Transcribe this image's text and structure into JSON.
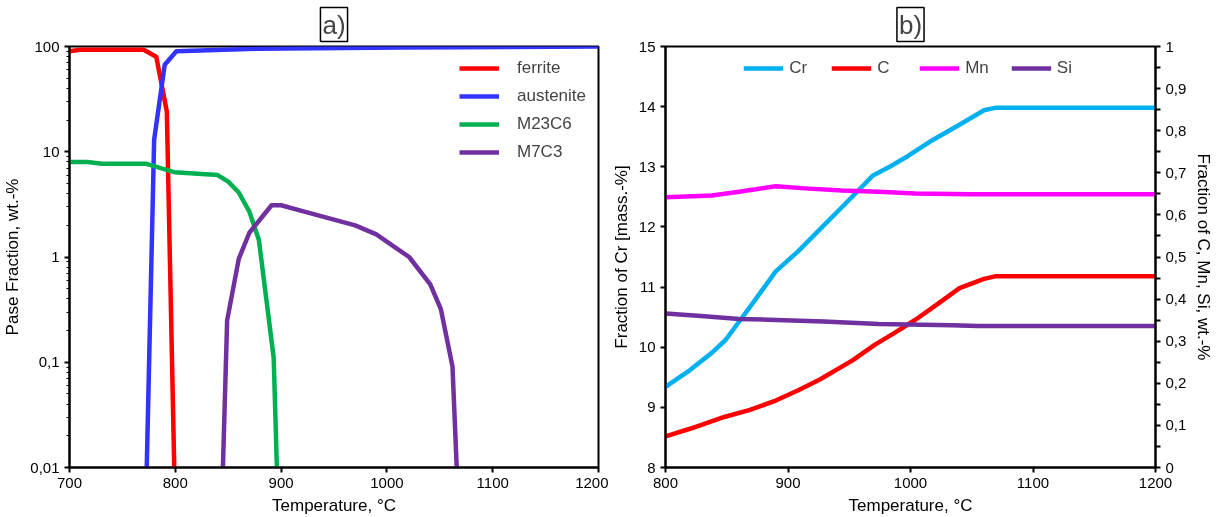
{
  "chart_data": [
    {
      "type": "line",
      "title": "a)",
      "xlabel": "Temperature, °C",
      "ylabel": "Pase Fraction, wt.-%",
      "log": "y",
      "grid": false,
      "legend": "top right",
      "xlim": [
        700,
        1200
      ],
      "xticks": [
        700,
        800,
        900,
        1000,
        1100,
        1200
      ],
      "ylim": [
        0.01,
        100
      ],
      "yticks": [
        {
          "value": 0.01,
          "label": "0,01"
        },
        {
          "value": 0.1,
          "label": "0,1"
        },
        1,
        10,
        100
      ],
      "series": [
        {
          "name": "ferrite",
          "color": "#ff0000",
          "x": [
            700,
            710,
            770,
            782,
            792,
            799
          ],
          "values": [
            90,
            93,
            93,
            80,
            24,
            0.01
          ]
        },
        {
          "name": "austenite",
          "color": "#3333ff",
          "x": [
            773,
            780,
            790,
            801,
            877,
            1014,
            1200
          ],
          "values": [
            0.01,
            13,
            67,
            90,
            95,
            98,
            100
          ]
        },
        {
          "name": "M23C6",
          "color": "#00b050",
          "x": [
            700,
            717,
            731,
            772,
            799,
            840,
            850,
            860,
            870,
            879,
            893,
            896
          ],
          "values": [
            8.0,
            8.0,
            7.7,
            7.7,
            6.4,
            6.0,
            5.2,
            4.1,
            2.7,
            1.45,
            0.11,
            0.01
          ]
        },
        {
          "name": "M7C3",
          "color": "#7030a0",
          "x": [
            845,
            849,
            860,
            870,
            882,
            891,
            900,
            922,
            970,
            990,
            1021,
            1041,
            1051,
            1062,
            1066
          ],
          "values": [
            0.01,
            0.25,
            0.96,
            1.7,
            2.4,
            3.1,
            3.1,
            2.7,
            2.0,
            1.64,
            1.0,
            0.55,
            0.32,
            0.091,
            0.01
          ]
        }
      ]
    },
    {
      "type": "line",
      "title": "b)",
      "xlabel": "Temperature, °C",
      "ylabel": "Fraction of Cr [mass.-%]",
      "y2label": "Fraction of C, Mn, Si, wt.-%",
      "grid": false,
      "legend": "top",
      "xlim": [
        800,
        1200
      ],
      "xticks": [
        800,
        900,
        1000,
        1100,
        1200
      ],
      "ylim": [
        8,
        15
      ],
      "yticks": [
        8,
        9,
        10,
        11,
        12,
        13,
        14,
        15
      ],
      "y2lim": [
        0,
        1
      ],
      "y2ticks": [
        0,
        {
          "value": 0.05,
          "label": null
        },
        {
          "value": 0.1,
          "label": "0,1"
        },
        {
          "value": 0.15,
          "label": null
        },
        {
          "value": 0.2,
          "label": "0,2"
        },
        {
          "value": 0.25,
          "label": null
        },
        {
          "value": 0.3,
          "label": "0,3"
        },
        {
          "value": 0.35,
          "label": null
        },
        {
          "value": 0.4,
          "label": "0,4"
        },
        {
          "value": 0.45,
          "label": null
        },
        {
          "value": 0.5,
          "label": "0,5"
        },
        {
          "value": 0.55,
          "label": null
        },
        {
          "value": 0.6,
          "label": "0,6"
        },
        {
          "value": 0.65,
          "label": null
        },
        {
          "value": 0.7,
          "label": "0,7"
        },
        {
          "value": 0.75,
          "label": null
        },
        {
          "value": 0.8,
          "label": "0,8"
        },
        {
          "value": 0.85,
          "label": null
        },
        {
          "value": 0.9,
          "label": "0,9"
        },
        {
          "value": 0.95,
          "label": null
        },
        1
      ],
      "series": [
        {
          "name": "Cr",
          "color": "#00b0f0",
          "x": [
            800,
            820,
            838,
            849,
            869,
            890,
            908,
            926,
            947,
            969,
            983,
            998,
            1016,
            1040,
            1060,
            1069,
            1200
          ],
          "values": [
            9.34,
            9.62,
            9.91,
            10.12,
            10.67,
            11.26,
            11.59,
            11.96,
            12.39,
            12.85,
            13.0,
            13.18,
            13.42,
            13.7,
            13.94,
            13.98,
            13.98
          ]
        },
        {
          "name": "C",
          "color": "#ff0000",
          "axis": "y2",
          "x": [
            800,
            820,
            848,
            869,
            890,
            908,
            926,
            953,
            971,
            986,
            1004,
            1022,
            1040,
            1060,
            1069,
            1200
          ],
          "values": [
            0.074,
            0.092,
            0.12,
            0.137,
            0.159,
            0.183,
            0.209,
            0.255,
            0.292,
            0.318,
            0.351,
            0.388,
            0.426,
            0.448,
            0.454,
            0.454
          ]
        },
        {
          "name": "Mn",
          "color": "#ff00ff",
          "axis": "y2",
          "x": [
            800,
            838,
            860,
            890,
            914,
            944,
            974,
            1004,
            1049,
            1200
          ],
          "values": [
            0.642,
            0.646,
            0.655,
            0.668,
            0.663,
            0.658,
            0.655,
            0.651,
            0.649,
            0.649
          ]
        },
        {
          "name": "Si",
          "color": "#7030a0",
          "axis": "y2",
          "x": [
            800,
            829,
            860,
            884,
            929,
            974,
            1034,
            1055,
            1200
          ],
          "values": [
            0.366,
            0.36,
            0.353,
            0.351,
            0.347,
            0.341,
            0.338,
            0.336,
            0.336
          ]
        }
      ]
    }
  ]
}
